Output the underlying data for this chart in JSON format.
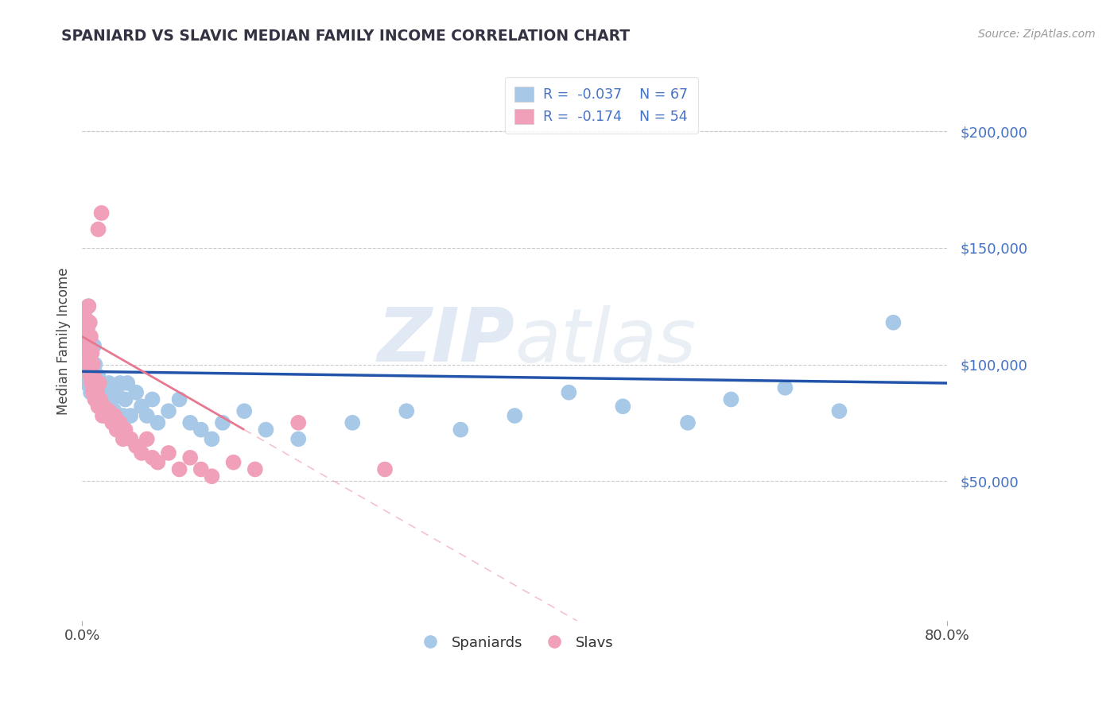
{
  "title": "SPANIARD VS SLAVIC MEDIAN FAMILY INCOME CORRELATION CHART",
  "source": "Source: ZipAtlas.com",
  "ylabel": "Median Family Income",
  "xlim": [
    0.0,
    0.8
  ],
  "ylim": [
    -10000,
    230000
  ],
  "watermark_zip": "ZIP",
  "watermark_atlas": "atlas",
  "legend_r1": "R =  -0.037",
  "legend_n1": "N = 67",
  "legend_r2": "R =  -0.174",
  "legend_n2": "N = 54",
  "spaniard_color": "#a8c8e8",
  "slav_color": "#f0a0b8",
  "trend_spaniard_color": "#2255aa",
  "trend_slav_color": "#e87890",
  "spaniard_points": [
    [
      0.001,
      95000
    ],
    [
      0.002,
      100000
    ],
    [
      0.002,
      105000
    ],
    [
      0.003,
      120000
    ],
    [
      0.003,
      108000
    ],
    [
      0.004,
      115000
    ],
    [
      0.004,
      92000
    ],
    [
      0.005,
      110000
    ],
    [
      0.005,
      98000
    ],
    [
      0.006,
      125000
    ],
    [
      0.006,
      105000
    ],
    [
      0.007,
      95000
    ],
    [
      0.007,
      118000
    ],
    [
      0.008,
      100000
    ],
    [
      0.008,
      88000
    ],
    [
      0.009,
      105000
    ],
    [
      0.009,
      95000
    ],
    [
      0.01,
      92000
    ],
    [
      0.01,
      98000
    ],
    [
      0.011,
      108000
    ],
    [
      0.012,
      90000
    ],
    [
      0.012,
      100000
    ],
    [
      0.013,
      95000
    ],
    [
      0.014,
      88000
    ],
    [
      0.015,
      95000
    ],
    [
      0.015,
      85000
    ],
    [
      0.016,
      92000
    ],
    [
      0.017,
      88000
    ],
    [
      0.018,
      82000
    ],
    [
      0.019,
      90000
    ],
    [
      0.02,
      85000
    ],
    [
      0.022,
      88000
    ],
    [
      0.025,
      92000
    ],
    [
      0.026,
      78000
    ],
    [
      0.028,
      85000
    ],
    [
      0.03,
      80000
    ],
    [
      0.032,
      88000
    ],
    [
      0.035,
      92000
    ],
    [
      0.038,
      78000
    ],
    [
      0.04,
      85000
    ],
    [
      0.042,
      92000
    ],
    [
      0.045,
      78000
    ],
    [
      0.05,
      88000
    ],
    [
      0.055,
      82000
    ],
    [
      0.06,
      78000
    ],
    [
      0.065,
      85000
    ],
    [
      0.07,
      75000
    ],
    [
      0.08,
      80000
    ],
    [
      0.09,
      85000
    ],
    [
      0.1,
      75000
    ],
    [
      0.11,
      72000
    ],
    [
      0.12,
      68000
    ],
    [
      0.13,
      75000
    ],
    [
      0.15,
      80000
    ],
    [
      0.17,
      72000
    ],
    [
      0.2,
      68000
    ],
    [
      0.25,
      75000
    ],
    [
      0.3,
      80000
    ],
    [
      0.35,
      72000
    ],
    [
      0.4,
      78000
    ],
    [
      0.45,
      88000
    ],
    [
      0.5,
      82000
    ],
    [
      0.56,
      75000
    ],
    [
      0.6,
      85000
    ],
    [
      0.65,
      90000
    ],
    [
      0.7,
      80000
    ],
    [
      0.75,
      118000
    ]
  ],
  "slav_points": [
    [
      0.001,
      110000
    ],
    [
      0.002,
      115000
    ],
    [
      0.002,
      105000
    ],
    [
      0.003,
      120000
    ],
    [
      0.003,
      108000
    ],
    [
      0.004,
      118000
    ],
    [
      0.004,
      112000
    ],
    [
      0.005,
      115000
    ],
    [
      0.005,
      105000
    ],
    [
      0.006,
      125000
    ],
    [
      0.006,
      108000
    ],
    [
      0.007,
      118000
    ],
    [
      0.007,
      100000
    ],
    [
      0.008,
      112000
    ],
    [
      0.008,
      95000
    ],
    [
      0.009,
      105000
    ],
    [
      0.009,
      92000
    ],
    [
      0.01,
      100000
    ],
    [
      0.01,
      88000
    ],
    [
      0.011,
      95000
    ],
    [
      0.012,
      90000
    ],
    [
      0.012,
      85000
    ],
    [
      0.013,
      92000
    ],
    [
      0.014,
      88000
    ],
    [
      0.015,
      158000
    ],
    [
      0.015,
      82000
    ],
    [
      0.016,
      92000
    ],
    [
      0.017,
      85000
    ],
    [
      0.018,
      165000
    ],
    [
      0.019,
      78000
    ],
    [
      0.02,
      82000
    ],
    [
      0.022,
      78000
    ],
    [
      0.025,
      80000
    ],
    [
      0.028,
      75000
    ],
    [
      0.03,
      78000
    ],
    [
      0.032,
      72000
    ],
    [
      0.035,
      75000
    ],
    [
      0.038,
      68000
    ],
    [
      0.04,
      72000
    ],
    [
      0.045,
      68000
    ],
    [
      0.05,
      65000
    ],
    [
      0.055,
      62000
    ],
    [
      0.06,
      68000
    ],
    [
      0.065,
      60000
    ],
    [
      0.07,
      58000
    ],
    [
      0.08,
      62000
    ],
    [
      0.09,
      55000
    ],
    [
      0.1,
      60000
    ],
    [
      0.11,
      55000
    ],
    [
      0.12,
      52000
    ],
    [
      0.14,
      58000
    ],
    [
      0.16,
      55000
    ],
    [
      0.2,
      75000
    ],
    [
      0.28,
      55000
    ]
  ],
  "ytick_vals": [
    50000,
    100000,
    150000,
    200000
  ],
  "ytick_labels": [
    "$50,000",
    "$100,000",
    "$150,000",
    "$200,000"
  ],
  "background_color": "#ffffff",
  "grid_color": "#cccccc",
  "title_color": "#333344",
  "source_color": "#999999",
  "axis_label_color": "#444444",
  "tick_label_color": "#4472c4"
}
